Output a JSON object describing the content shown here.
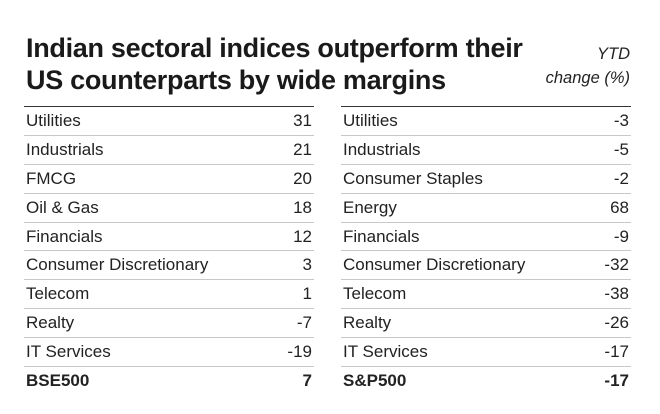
{
  "header": {
    "title": "Indian sectoral indices outperform their US counterparts by wide margins",
    "ytd_label_line1": "YTD",
    "ytd_label_line2": "change (%)"
  },
  "india": {
    "rows": [
      {
        "sector": "Utilities",
        "value": "31"
      },
      {
        "sector": "Industrials",
        "value": "21"
      },
      {
        "sector": "FMCG",
        "value": "20"
      },
      {
        "sector": "Oil & Gas",
        "value": "18"
      },
      {
        "sector": "Financials",
        "value": "12"
      },
      {
        "sector": "Consumer Discretionary",
        "value": "3"
      },
      {
        "sector": "Telecom",
        "value": "1"
      },
      {
        "sector": "Realty",
        "value": "-7"
      },
      {
        "sector": "IT Services",
        "value": "-19"
      }
    ],
    "total": {
      "sector": "BSE500",
      "value": "7"
    }
  },
  "us": {
    "rows": [
      {
        "sector": "Utilities",
        "value": "-3"
      },
      {
        "sector": "Industrials",
        "value": "-5"
      },
      {
        "sector": "Consumer Staples",
        "value": "-2"
      },
      {
        "sector": "Energy",
        "value": "68"
      },
      {
        "sector": "Financials",
        "value": "-9"
      },
      {
        "sector": "Consumer Discretionary",
        "value": "-32"
      },
      {
        "sector": "Telecom",
        "value": "-38"
      },
      {
        "sector": "Realty",
        "value": "-26"
      },
      {
        "sector": "IT Services",
        "value": "-17"
      }
    ],
    "total": {
      "sector": "S&P500",
      "value": "-17"
    }
  }
}
